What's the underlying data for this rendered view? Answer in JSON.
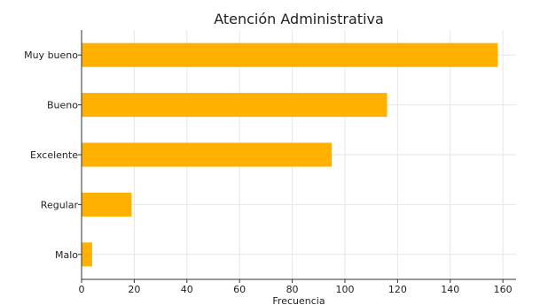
{
  "chart_data": {
    "type": "bar",
    "orientation": "horizontal",
    "title": "Atención Administrativa",
    "xlabel": "Frecuencia",
    "ylabel": "",
    "categories": [
      "Muy bueno",
      "Bueno",
      "Excelente",
      "Regular",
      "Malo"
    ],
    "values": [
      158,
      116,
      95,
      19,
      4
    ],
    "xlim": [
      0,
      165
    ],
    "xticks": [
      0,
      20,
      40,
      60,
      80,
      100,
      120,
      140,
      160
    ],
    "grid": true,
    "bar_color": "#FFB000"
  }
}
